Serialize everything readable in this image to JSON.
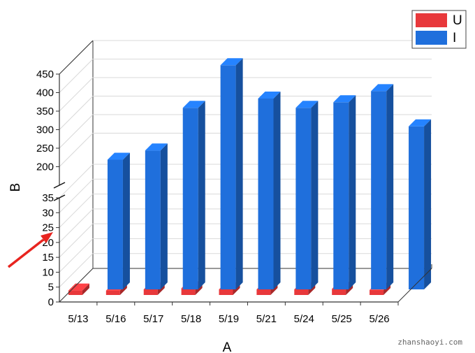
{
  "chart_data": {
    "type": "bar",
    "categories": [
      "5/13",
      "5/16",
      "5/17",
      "5/18",
      "5/19",
      "5/21",
      "5/24",
      "5/25",
      "5/26"
    ],
    "series": [
      {
        "name": "U",
        "values": [
          4,
          4,
          5,
          6,
          5,
          5,
          5,
          5.5,
          4.5
        ],
        "color": "#e8383b"
      },
      {
        "name": "I",
        "values": [
          185,
          210,
          325,
          440,
          350,
          325,
          340,
          370,
          275
        ],
        "color": "#1f6fdc"
      }
    ],
    "xlabel": "A",
    "ylabel": "B",
    "y_axis_break": {
      "lower_range": [
        0,
        35
      ],
      "upper_range": [
        150,
        450
      ]
    },
    "lower_ticks": [
      "0",
      "5",
      "10",
      "15",
      "20",
      "25",
      "30",
      "35"
    ],
    "upper_ticks": [
      "200",
      "250",
      "300",
      "350",
      "400",
      "450"
    ],
    "legend_position": "top-right",
    "style": "3d-bar",
    "annotation": "red arrow pointing to the y-axis break"
  },
  "watermark": "zhanshaoyi.com"
}
